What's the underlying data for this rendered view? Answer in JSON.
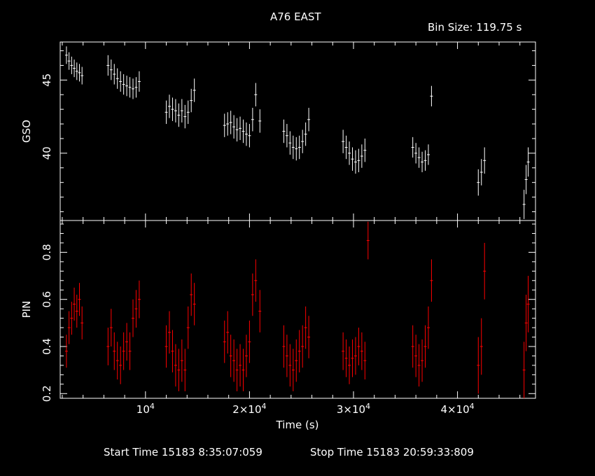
{
  "chart_data": {
    "type": "scatter",
    "title": "A76 EAST",
    "bin_size": "Bin Size: 119.75 s",
    "xlabel": "Time (s)",
    "xlim": [
      1800,
      47500
    ],
    "xticks": [
      {
        "value": 10000,
        "label": "10^4"
      },
      {
        "value": 20000,
        "label": "2×10^4"
      },
      {
        "value": 30000,
        "label": "3×10^4"
      },
      {
        "value": 40000,
        "label": "4×10^4"
      }
    ],
    "footer": {
      "start": "Start Time 15183  8:35:07:059",
      "stop": "Stop Time 15183 20:59:33:809"
    },
    "panels": [
      {
        "name": "GSO",
        "ylabel": "GSO",
        "color": "#ffffff",
        "ylim": [
          35.4,
          47.6
        ],
        "yticks": [
          {
            "value": 40,
            "label": "40"
          },
          {
            "value": 45,
            "label": "45"
          }
        ],
        "segments": [
          {
            "x": [
              2400,
              2650,
              2900,
              3150,
              3400,
              3650,
              3900
            ],
            "y": [
              46.7,
              46.3,
              46.0,
              45.8,
              45.6,
              45.5,
              45.3
            ],
            "err": 0.6
          },
          {
            "x": [
              6400,
              6700,
              7000,
              7300,
              7600,
              7900,
              8200,
              8500,
              8800,
              9100,
              9400
            ],
            "y": [
              46.0,
              45.7,
              45.4,
              45.1,
              44.9,
              44.7,
              44.6,
              44.5,
              44.4,
              44.5,
              44.9
            ],
            "err": 0.7
          },
          {
            "x": [
              12000,
              12300,
              12600,
              12900,
              13200,
              13500,
              13800,
              14100,
              14400,
              14700
            ],
            "y": [
              42.8,
              43.2,
              43.0,
              42.9,
              42.6,
              42.9,
              42.5,
              42.8,
              43.6,
              44.3
            ],
            "err": 0.8
          },
          {
            "x": [
              17600,
              17900,
              18200,
              18500,
              18800,
              19100,
              19400,
              19700,
              20000,
              20300,
              20600,
              21000
            ],
            "y": [
              41.9,
              42.0,
              42.1,
              41.8,
              41.6,
              41.7,
              41.5,
              41.3,
              41.2,
              42.3,
              44.0,
              42.2
            ],
            "err": 0.8
          },
          {
            "x": [
              23300,
              23600,
              23900,
              24200,
              24500,
              24800,
              25100,
              25400,
              25700
            ],
            "y": [
              41.5,
              41.2,
              40.7,
              40.4,
              40.3,
              40.4,
              40.8,
              41.3,
              42.3
            ],
            "err": 0.8
          },
          {
            "x": [
              29000,
              29300,
              29600,
              29900,
              30200,
              30500,
              30800,
              31100
            ],
            "y": [
              40.8,
              40.4,
              40.0,
              39.6,
              39.4,
              39.5,
              39.8,
              40.2
            ],
            "err": 0.8
          },
          {
            "x": [
              35700,
              36000,
              36300,
              36600,
              36900,
              37200,
              37500
            ],
            "y": [
              40.4,
              40.0,
              39.7,
              39.4,
              39.5,
              39.9,
              43.9
            ],
            "err": 0.7
          },
          {
            "x": [
              42000,
              42300,
              42600
            ],
            "y": [
              38.0,
              38.7,
              39.5
            ],
            "err": 0.9
          },
          {
            "x": [
              46400,
              46600,
              46800
            ],
            "y": [
              36.5,
              38.2,
              39.4
            ],
            "err": 1.0
          }
        ]
      },
      {
        "name": "PIN",
        "ylabel": "PIN",
        "color": "#ff0000",
        "ylim": [
          0.18,
          0.935
        ],
        "yticks": [
          {
            "value": 0.2,
            "label": "0.2"
          },
          {
            "value": 0.4,
            "label": "0.4"
          },
          {
            "value": 0.6,
            "label": "0.6"
          },
          {
            "value": 0.8,
            "label": "0.8"
          }
        ],
        "segments": [
          {
            "x": [
              2400,
              2650,
              2900,
              3150,
              3400,
              3650,
              3900
            ],
            "y": [
              0.38,
              0.48,
              0.52,
              0.58,
              0.55,
              0.6,
              0.5
            ],
            "err": 0.07
          },
          {
            "x": [
              6400,
              6700,
              7000,
              7300,
              7600,
              7900,
              8200,
              8500,
              8800,
              9100,
              9400
            ],
            "y": [
              0.4,
              0.48,
              0.38,
              0.34,
              0.32,
              0.38,
              0.42,
              0.38,
              0.52,
              0.56,
              0.6
            ],
            "err": 0.08
          },
          {
            "x": [
              12000,
              12300,
              12600,
              12900,
              13200,
              13500,
              13800,
              14100,
              14400,
              14700
            ],
            "y": [
              0.4,
              0.46,
              0.38,
              0.32,
              0.3,
              0.34,
              0.3,
              0.48,
              0.62,
              0.58
            ],
            "err": 0.09
          },
          {
            "x": [
              17600,
              17900,
              18200,
              18500,
              18800,
              19100,
              19400,
              19700,
              20000,
              20300,
              20600,
              21000
            ],
            "y": [
              0.42,
              0.46,
              0.36,
              0.34,
              0.3,
              0.32,
              0.3,
              0.36,
              0.42,
              0.62,
              0.68,
              0.55
            ],
            "err": 0.09
          },
          {
            "x": [
              23300,
              23600,
              23900,
              24200,
              24500,
              24800,
              25100,
              25400,
              25700
            ],
            "y": [
              0.4,
              0.36,
              0.32,
              0.3,
              0.34,
              0.38,
              0.4,
              0.48,
              0.44
            ],
            "err": 0.09
          },
          {
            "x": [
              29000,
              29300,
              29600,
              29900,
              30200,
              30500,
              30800,
              31100,
              31400
            ],
            "y": [
              0.38,
              0.35,
              0.32,
              0.35,
              0.36,
              0.4,
              0.38,
              0.34,
              0.85
            ],
            "err": 0.08
          },
          {
            "x": [
              35700,
              36000,
              36300,
              36600,
              36900,
              37200,
              37500
            ],
            "y": [
              0.4,
              0.36,
              0.32,
              0.34,
              0.4,
              0.48,
              0.68
            ],
            "err": 0.09
          },
          {
            "x": [
              42000,
              42300,
              42600
            ],
            "y": [
              0.32,
              0.4,
              0.72
            ],
            "err": 0.12
          },
          {
            "x": [
              46400,
              46600,
              46800
            ],
            "y": [
              0.3,
              0.5,
              0.58
            ],
            "err": 0.12
          }
        ]
      }
    ]
  }
}
